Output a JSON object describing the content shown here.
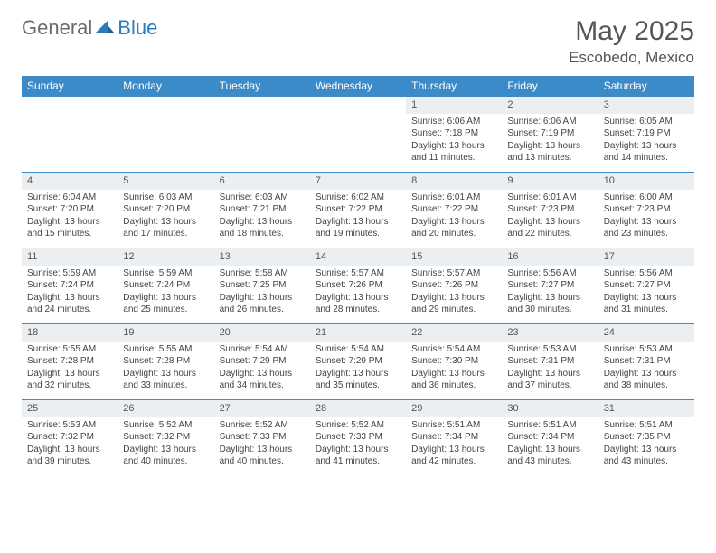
{
  "logo": {
    "general": "General",
    "blue": "Blue"
  },
  "title": "May 2025",
  "location": "Escobedo, Mexico",
  "colors": {
    "header_bg": "#3b8bc8",
    "header_text": "#ffffff",
    "daynum_bg": "#eceff1",
    "border": "#3b8bc8",
    "text": "#444444",
    "logo_gray": "#6b6b6b",
    "logo_blue": "#2b7bbf"
  },
  "weekdays": [
    "Sunday",
    "Monday",
    "Tuesday",
    "Wednesday",
    "Thursday",
    "Friday",
    "Saturday"
  ],
  "weeks": [
    [
      null,
      null,
      null,
      null,
      {
        "n": "1",
        "sr": "Sunrise: 6:06 AM",
        "ss": "Sunset: 7:18 PM",
        "d1": "Daylight: 13 hours",
        "d2": "and 11 minutes."
      },
      {
        "n": "2",
        "sr": "Sunrise: 6:06 AM",
        "ss": "Sunset: 7:19 PM",
        "d1": "Daylight: 13 hours",
        "d2": "and 13 minutes."
      },
      {
        "n": "3",
        "sr": "Sunrise: 6:05 AM",
        "ss": "Sunset: 7:19 PM",
        "d1": "Daylight: 13 hours",
        "d2": "and 14 minutes."
      }
    ],
    [
      {
        "n": "4",
        "sr": "Sunrise: 6:04 AM",
        "ss": "Sunset: 7:20 PM",
        "d1": "Daylight: 13 hours",
        "d2": "and 15 minutes."
      },
      {
        "n": "5",
        "sr": "Sunrise: 6:03 AM",
        "ss": "Sunset: 7:20 PM",
        "d1": "Daylight: 13 hours",
        "d2": "and 17 minutes."
      },
      {
        "n": "6",
        "sr": "Sunrise: 6:03 AM",
        "ss": "Sunset: 7:21 PM",
        "d1": "Daylight: 13 hours",
        "d2": "and 18 minutes."
      },
      {
        "n": "7",
        "sr": "Sunrise: 6:02 AM",
        "ss": "Sunset: 7:22 PM",
        "d1": "Daylight: 13 hours",
        "d2": "and 19 minutes."
      },
      {
        "n": "8",
        "sr": "Sunrise: 6:01 AM",
        "ss": "Sunset: 7:22 PM",
        "d1": "Daylight: 13 hours",
        "d2": "and 20 minutes."
      },
      {
        "n": "9",
        "sr": "Sunrise: 6:01 AM",
        "ss": "Sunset: 7:23 PM",
        "d1": "Daylight: 13 hours",
        "d2": "and 22 minutes."
      },
      {
        "n": "10",
        "sr": "Sunrise: 6:00 AM",
        "ss": "Sunset: 7:23 PM",
        "d1": "Daylight: 13 hours",
        "d2": "and 23 minutes."
      }
    ],
    [
      {
        "n": "11",
        "sr": "Sunrise: 5:59 AM",
        "ss": "Sunset: 7:24 PM",
        "d1": "Daylight: 13 hours",
        "d2": "and 24 minutes."
      },
      {
        "n": "12",
        "sr": "Sunrise: 5:59 AM",
        "ss": "Sunset: 7:24 PM",
        "d1": "Daylight: 13 hours",
        "d2": "and 25 minutes."
      },
      {
        "n": "13",
        "sr": "Sunrise: 5:58 AM",
        "ss": "Sunset: 7:25 PM",
        "d1": "Daylight: 13 hours",
        "d2": "and 26 minutes."
      },
      {
        "n": "14",
        "sr": "Sunrise: 5:57 AM",
        "ss": "Sunset: 7:26 PM",
        "d1": "Daylight: 13 hours",
        "d2": "and 28 minutes."
      },
      {
        "n": "15",
        "sr": "Sunrise: 5:57 AM",
        "ss": "Sunset: 7:26 PM",
        "d1": "Daylight: 13 hours",
        "d2": "and 29 minutes."
      },
      {
        "n": "16",
        "sr": "Sunrise: 5:56 AM",
        "ss": "Sunset: 7:27 PM",
        "d1": "Daylight: 13 hours",
        "d2": "and 30 minutes."
      },
      {
        "n": "17",
        "sr": "Sunrise: 5:56 AM",
        "ss": "Sunset: 7:27 PM",
        "d1": "Daylight: 13 hours",
        "d2": "and 31 minutes."
      }
    ],
    [
      {
        "n": "18",
        "sr": "Sunrise: 5:55 AM",
        "ss": "Sunset: 7:28 PM",
        "d1": "Daylight: 13 hours",
        "d2": "and 32 minutes."
      },
      {
        "n": "19",
        "sr": "Sunrise: 5:55 AM",
        "ss": "Sunset: 7:28 PM",
        "d1": "Daylight: 13 hours",
        "d2": "and 33 minutes."
      },
      {
        "n": "20",
        "sr": "Sunrise: 5:54 AM",
        "ss": "Sunset: 7:29 PM",
        "d1": "Daylight: 13 hours",
        "d2": "and 34 minutes."
      },
      {
        "n": "21",
        "sr": "Sunrise: 5:54 AM",
        "ss": "Sunset: 7:29 PM",
        "d1": "Daylight: 13 hours",
        "d2": "and 35 minutes."
      },
      {
        "n": "22",
        "sr": "Sunrise: 5:54 AM",
        "ss": "Sunset: 7:30 PM",
        "d1": "Daylight: 13 hours",
        "d2": "and 36 minutes."
      },
      {
        "n": "23",
        "sr": "Sunrise: 5:53 AM",
        "ss": "Sunset: 7:31 PM",
        "d1": "Daylight: 13 hours",
        "d2": "and 37 minutes."
      },
      {
        "n": "24",
        "sr": "Sunrise: 5:53 AM",
        "ss": "Sunset: 7:31 PM",
        "d1": "Daylight: 13 hours",
        "d2": "and 38 minutes."
      }
    ],
    [
      {
        "n": "25",
        "sr": "Sunrise: 5:53 AM",
        "ss": "Sunset: 7:32 PM",
        "d1": "Daylight: 13 hours",
        "d2": "and 39 minutes."
      },
      {
        "n": "26",
        "sr": "Sunrise: 5:52 AM",
        "ss": "Sunset: 7:32 PM",
        "d1": "Daylight: 13 hours",
        "d2": "and 40 minutes."
      },
      {
        "n": "27",
        "sr": "Sunrise: 5:52 AM",
        "ss": "Sunset: 7:33 PM",
        "d1": "Daylight: 13 hours",
        "d2": "and 40 minutes."
      },
      {
        "n": "28",
        "sr": "Sunrise: 5:52 AM",
        "ss": "Sunset: 7:33 PM",
        "d1": "Daylight: 13 hours",
        "d2": "and 41 minutes."
      },
      {
        "n": "29",
        "sr": "Sunrise: 5:51 AM",
        "ss": "Sunset: 7:34 PM",
        "d1": "Daylight: 13 hours",
        "d2": "and 42 minutes."
      },
      {
        "n": "30",
        "sr": "Sunrise: 5:51 AM",
        "ss": "Sunset: 7:34 PM",
        "d1": "Daylight: 13 hours",
        "d2": "and 43 minutes."
      },
      {
        "n": "31",
        "sr": "Sunrise: 5:51 AM",
        "ss": "Sunset: 7:35 PM",
        "d1": "Daylight: 13 hours",
        "d2": "and 43 minutes."
      }
    ]
  ]
}
